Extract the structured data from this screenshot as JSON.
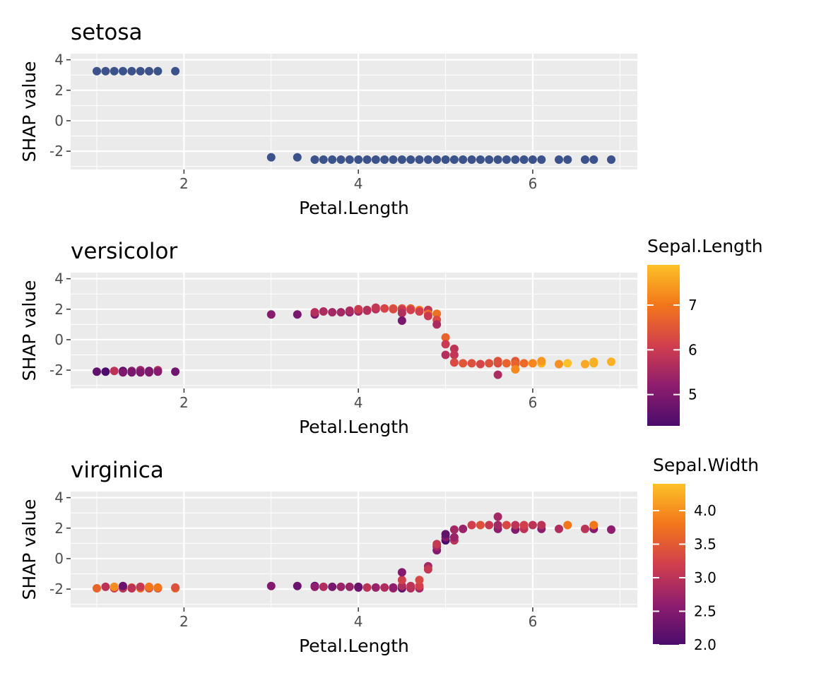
{
  "chart_data": [
    {
      "type": "scatter",
      "title": "setosa",
      "xlabel": "Petal.Length",
      "ylabel": "SHAP value",
      "xlim": [
        0.7,
        7.2
      ],
      "ylim": [
        -3.2,
        4.4
      ],
      "xticks": [
        2,
        4,
        6
      ],
      "yticks": [
        4,
        2,
        0,
        -2
      ],
      "ytick_labels": [
        "4",
        "2",
        "0",
        "-2"
      ],
      "grid": true,
      "color": "#3b528b",
      "series": [
        {
          "values": [
            [
              1.0,
              3.25
            ],
            [
              1.1,
              3.25
            ],
            [
              1.2,
              3.25
            ],
            [
              1.3,
              3.25
            ],
            [
              1.4,
              3.25
            ],
            [
              1.5,
              3.25
            ],
            [
              1.6,
              3.25
            ],
            [
              1.7,
              3.25
            ],
            [
              1.9,
              3.25
            ],
            [
              3.0,
              -2.4
            ],
            [
              3.3,
              -2.4
            ],
            [
              3.5,
              -2.55
            ],
            [
              3.6,
              -2.55
            ],
            [
              3.7,
              -2.55
            ],
            [
              3.8,
              -2.55
            ],
            [
              3.9,
              -2.55
            ],
            [
              4.0,
              -2.55
            ],
            [
              4.1,
              -2.55
            ],
            [
              4.2,
              -2.55
            ],
            [
              4.3,
              -2.55
            ],
            [
              4.4,
              -2.55
            ],
            [
              4.5,
              -2.55
            ],
            [
              4.6,
              -2.55
            ],
            [
              4.7,
              -2.55
            ],
            [
              4.8,
              -2.55
            ],
            [
              4.9,
              -2.55
            ],
            [
              5.0,
              -2.55
            ],
            [
              5.1,
              -2.55
            ],
            [
              5.2,
              -2.55
            ],
            [
              5.3,
              -2.55
            ],
            [
              5.4,
              -2.55
            ],
            [
              5.5,
              -2.55
            ],
            [
              5.6,
              -2.55
            ],
            [
              5.7,
              -2.55
            ],
            [
              5.8,
              -2.55
            ],
            [
              5.9,
              -2.55
            ],
            [
              6.0,
              -2.55
            ],
            [
              6.1,
              -2.55
            ],
            [
              6.3,
              -2.55
            ],
            [
              6.4,
              -2.55
            ],
            [
              6.6,
              -2.55
            ],
            [
              6.7,
              -2.55
            ],
            [
              6.9,
              -2.55
            ]
          ]
        }
      ]
    },
    {
      "type": "scatter",
      "title": "versicolor",
      "xlabel": "Petal.Length",
      "ylabel": "SHAP value",
      "xlim": [
        0.7,
        7.2
      ],
      "ylim": [
        -3.2,
        4.4
      ],
      "xticks": [
        2,
        4,
        6
      ],
      "yticks": [
        4,
        2,
        0,
        -2
      ],
      "ytick_labels": [
        "4",
        "2",
        "0",
        "-2"
      ],
      "grid": true,
      "color_by": "Sepal.Length",
      "legend": {
        "title": "Sepal.Length",
        "min": 4.3,
        "max": 7.9,
        "ticks": [
          5,
          6,
          7
        ],
        "tick_labels": [
          "5",
          "6",
          "7"
        ],
        "placement": "right"
      },
      "series": [
        {
          "values": [
            [
              1.0,
              -2.1,
              4.6
            ],
            [
              1.1,
              -2.1,
              4.3
            ],
            [
              1.2,
              -2.05,
              5.8
            ],
            [
              1.3,
              -2.05,
              4.4
            ],
            [
              1.3,
              -2.15,
              5.0
            ],
            [
              1.4,
              -2.05,
              5.1
            ],
            [
              1.4,
              -2.15,
              4.9
            ],
            [
              1.5,
              -2.0,
              5.4
            ],
            [
              1.5,
              -2.15,
              5.0
            ],
            [
              1.6,
              -2.05,
              4.8
            ],
            [
              1.6,
              -2.15,
              5.0
            ],
            [
              1.7,
              -2.0,
              5.7
            ],
            [
              1.7,
              -2.1,
              5.1
            ],
            [
              1.9,
              -2.1,
              4.8
            ],
            [
              3.0,
              1.65,
              5.1
            ],
            [
              3.3,
              1.65,
              4.9
            ],
            [
              3.5,
              1.65,
              5.0
            ],
            [
              3.5,
              1.8,
              5.7
            ],
            [
              3.6,
              1.85,
              5.6
            ],
            [
              3.7,
              1.8,
              5.5
            ],
            [
              3.8,
              1.8,
              5.5
            ],
            [
              3.9,
              1.8,
              5.2
            ],
            [
              3.9,
              1.9,
              5.6
            ],
            [
              4.0,
              1.85,
              5.5
            ],
            [
              4.0,
              2.0,
              6.0
            ],
            [
              4.1,
              1.95,
              5.8
            ],
            [
              4.1,
              1.9,
              5.7
            ],
            [
              4.2,
              2.0,
              5.6
            ],
            [
              4.2,
              2.1,
              5.9
            ],
            [
              4.3,
              2.05,
              6.2
            ],
            [
              4.4,
              2.05,
              6.7
            ],
            [
              4.4,
              2.0,
              6.3
            ],
            [
              4.5,
              2.05,
              6.4
            ],
            [
              4.5,
              1.95,
              6.0
            ],
            [
              4.5,
              1.75,
              5.7
            ],
            [
              4.5,
              1.25,
              4.9
            ],
            [
              4.6,
              2.05,
              6.6
            ],
            [
              4.6,
              1.95,
              6.1
            ],
            [
              4.7,
              1.95,
              7.0
            ],
            [
              4.7,
              1.85,
              6.1
            ],
            [
              4.8,
              1.95,
              5.9
            ],
            [
              4.8,
              1.7,
              6.8
            ],
            [
              4.8,
              1.55,
              6.0
            ],
            [
              4.9,
              1.7,
              6.9
            ],
            [
              4.9,
              1.3,
              6.3
            ],
            [
              4.9,
              1.0,
              5.6
            ],
            [
              5.0,
              0.15,
              6.7
            ],
            [
              5.0,
              -0.3,
              6.0
            ],
            [
              5.0,
              -1.0,
              5.7
            ],
            [
              5.1,
              -0.6,
              5.8
            ],
            [
              5.1,
              -1.0,
              5.9
            ],
            [
              5.1,
              -1.5,
              6.3
            ],
            [
              5.2,
              -1.55,
              6.5
            ],
            [
              5.3,
              -1.55,
              6.4
            ],
            [
              5.4,
              -1.6,
              6.2
            ],
            [
              5.5,
              -1.55,
              6.4
            ],
            [
              5.6,
              -1.55,
              6.3
            ],
            [
              5.6,
              -1.4,
              6.4
            ],
            [
              5.6,
              -2.3,
              5.6
            ],
            [
              5.7,
              -1.55,
              6.7
            ],
            [
              5.8,
              -1.4,
              6.5
            ],
            [
              5.8,
              -1.6,
              6.7
            ],
            [
              5.8,
              -1.95,
              7.2
            ],
            [
              5.9,
              -1.55,
              6.8
            ],
            [
              6.0,
              -1.55,
              7.2
            ],
            [
              6.1,
              -1.55,
              7.7
            ],
            [
              6.1,
              -1.4,
              7.4
            ],
            [
              6.3,
              -1.6,
              7.3
            ],
            [
              6.4,
              -1.55,
              7.9
            ],
            [
              6.6,
              -1.6,
              7.6
            ],
            [
              6.7,
              -1.55,
              7.7
            ],
            [
              6.7,
              -1.45,
              7.7
            ],
            [
              6.9,
              -1.45,
              7.7
            ]
          ]
        }
      ]
    },
    {
      "type": "scatter",
      "title": "virginica",
      "xlabel": "Petal.Length",
      "ylabel": "SHAP value",
      "xlim": [
        0.7,
        7.2
      ],
      "ylim": [
        -3.2,
        4.4
      ],
      "xticks": [
        2,
        4,
        6
      ],
      "yticks": [
        4,
        2,
        0,
        -2
      ],
      "ytick_labels": [
        "4",
        "2",
        "0",
        "-2"
      ],
      "grid": true,
      "color_by": "Sepal.Width",
      "legend": {
        "title": "Sepal.Width",
        "min": 2.0,
        "max": 4.4,
        "ticks": [
          2.0,
          2.5,
          3.0,
          3.5,
          4.0
        ],
        "tick_labels": [
          "2.0",
          "2.5",
          "3.0",
          "3.5",
          "4.0"
        ],
        "placement": "right"
      },
      "series": [
        {
          "values": [
            [
              1.0,
              -1.95,
              3.6
            ],
            [
              1.1,
              -1.85,
              3.0
            ],
            [
              1.2,
              -1.95,
              3.2
            ],
            [
              1.2,
              -1.85,
              4.0
            ],
            [
              1.3,
              -1.95,
              3.0
            ],
            [
              1.3,
              -1.8,
              2.3
            ],
            [
              1.4,
              -1.9,
              3.5
            ],
            [
              1.4,
              -1.95,
              3.0
            ],
            [
              1.5,
              -1.95,
              3.7
            ],
            [
              1.5,
              -1.85,
              3.1
            ],
            [
              1.6,
              -1.95,
              3.4
            ],
            [
              1.6,
              -1.85,
              3.8
            ],
            [
              1.7,
              -1.95,
              3.3
            ],
            [
              1.7,
              -1.9,
              3.8
            ],
            [
              1.9,
              -1.95,
              3.8
            ],
            [
              1.9,
              -1.9,
              3.4
            ],
            [
              3.0,
              -1.8,
              2.5
            ],
            [
              3.3,
              -1.8,
              2.3
            ],
            [
              3.5,
              -1.8,
              2.0
            ],
            [
              3.5,
              -1.85,
              2.6
            ],
            [
              3.6,
              -1.85,
              2.9
            ],
            [
              3.7,
              -1.85,
              2.4
            ],
            [
              3.8,
              -1.85,
              2.7
            ],
            [
              3.9,
              -1.85,
              2.7
            ],
            [
              4.0,
              -1.85,
              2.2
            ],
            [
              4.0,
              -1.9,
              2.3
            ],
            [
              4.1,
              -1.9,
              3.0
            ],
            [
              4.2,
              -1.9,
              2.7
            ],
            [
              4.3,
              -1.9,
              2.9
            ],
            [
              4.4,
              -1.95,
              2.9
            ],
            [
              4.4,
              -1.9,
              2.6
            ],
            [
              4.5,
              -1.95,
              2.2
            ],
            [
              4.5,
              -1.8,
              2.9
            ],
            [
              4.5,
              -1.4,
              3.2
            ],
            [
              4.5,
              -0.9,
              2.5
            ],
            [
              4.6,
              -1.95,
              2.9
            ],
            [
              4.6,
              -1.8,
              3.0
            ],
            [
              4.7,
              -1.95,
              2.8
            ],
            [
              4.7,
              -1.8,
              3.2
            ],
            [
              4.7,
              -1.4,
              3.3
            ],
            [
              4.8,
              -0.5,
              2.8
            ],
            [
              4.8,
              -0.7,
              3.1
            ],
            [
              4.9,
              0.55,
              2.5
            ],
            [
              4.9,
              0.8,
              2.8
            ],
            [
              4.9,
              0.95,
              3.1
            ],
            [
              5.0,
              1.2,
              2.0
            ],
            [
              5.0,
              1.4,
              2.5
            ],
            [
              5.0,
              1.6,
              2.2
            ],
            [
              5.1,
              1.2,
              3.0
            ],
            [
              5.1,
              1.4,
              2.7
            ],
            [
              5.1,
              1.9,
              2.8
            ],
            [
              5.2,
              1.95,
              2.7
            ],
            [
              5.3,
              2.2,
              3.2
            ],
            [
              5.4,
              2.2,
              3.4
            ],
            [
              5.5,
              2.2,
              3.1
            ],
            [
              5.6,
              1.95,
              2.6
            ],
            [
              5.6,
              2.2,
              2.8
            ],
            [
              5.6,
              2.75,
              2.8
            ],
            [
              5.7,
              2.2,
              3.3
            ],
            [
              5.8,
              1.9,
              2.5
            ],
            [
              5.8,
              2.2,
              3.0
            ],
            [
              5.9,
              1.95,
              3.0
            ],
            [
              5.9,
              2.2,
              3.2
            ],
            [
              6.0,
              2.2,
              3.0
            ],
            [
              6.1,
              1.95,
              2.6
            ],
            [
              6.1,
              2.2,
              3.0
            ],
            [
              6.3,
              1.95,
              2.9
            ],
            [
              6.4,
              2.2,
              3.8
            ],
            [
              6.6,
              1.95,
              3.0
            ],
            [
              6.7,
              1.95,
              2.5
            ],
            [
              6.7,
              2.2,
              3.8
            ],
            [
              6.9,
              1.9,
              2.6
            ]
          ]
        }
      ]
    }
  ]
}
